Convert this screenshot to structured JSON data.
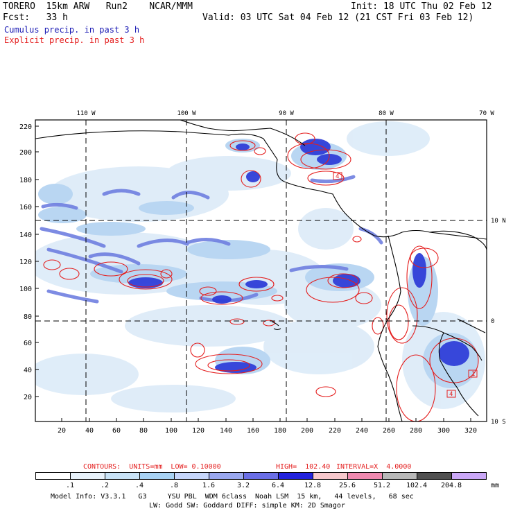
{
  "header": {
    "model_title": "TORERO  15km ARW   Run2    NCAR/MMM",
    "init": "Init: 18 UTC Thu 02 Feb 12",
    "fcst": "Fcst:   33 h",
    "valid": "Valid: 03 UTC Sat 04 Feb 12 (21 CST Fri 03 Feb 12)",
    "legend_cumulus": "Cumulus precip. in past 3 h",
    "legend_explicit": "Explicit precip. in past 3 h",
    "color_cumulus": "#1a1ab4",
    "color_explicit": "#e41e1e"
  },
  "map": {
    "lon_labels": [
      "110 W",
      "100 W",
      "90 W",
      "80 W",
      "70 W"
    ],
    "lat_labels": [
      "10 N",
      "0",
      "10 S"
    ],
    "y_ticks": [
      "220",
      "200",
      "180",
      "160",
      "140",
      "120",
      "100",
      "80",
      "60",
      "40",
      "20"
    ],
    "x_ticks": [
      "20",
      "40",
      "60",
      "80",
      "100",
      "120",
      "140",
      "160",
      "180",
      "200",
      "220",
      "240",
      "260",
      "280",
      "300",
      "320"
    ],
    "high_markers": [
      "4",
      "1",
      "4"
    ]
  },
  "contours": {
    "units": "CONTOURS:  UNITS=mm  LOW= 0.10000",
    "high": "HIGH=  102.40",
    "interval": "INTERVAL=X  4.0000"
  },
  "scale": {
    "labels": [
      ".1",
      ".2",
      ".4",
      ".8",
      "1.6",
      "3.2",
      "6.4",
      "12.8",
      "25.6",
      "51.2",
      "102.4",
      "204.8"
    ],
    "unit": "mm",
    "colors": [
      "#ffffff",
      "#e8f2fb",
      "#c9e3f7",
      "#a8d2f3",
      "#c6d6fb",
      "#9aa8f0",
      "#6a6ee6",
      "#2222dd",
      "#f7c8cc",
      "#f08ab0",
      "#b8b8b8",
      "#505050",
      "#cba8f8"
    ]
  },
  "footer": {
    "line1": "Model Info: V3.3.1   G3     YSU PBL  WDM 6class  Noah LSM  15 km,   44 levels,   68 sec",
    "line2": "LW: Godd SW: Goddard DIFF: simple KM: 2D Smagor"
  }
}
